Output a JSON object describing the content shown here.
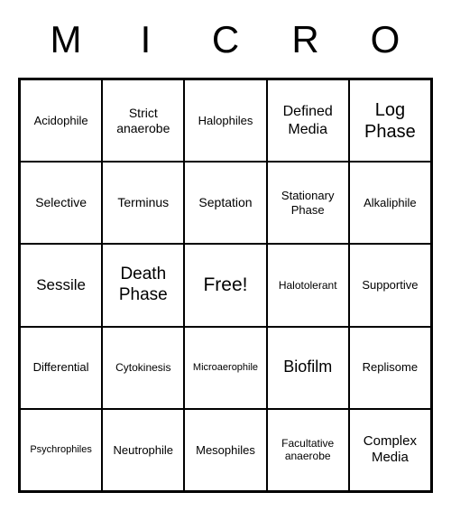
{
  "type": "bingo-card",
  "header": {
    "letters": [
      "M",
      "I",
      "C",
      "R",
      "O"
    ]
  },
  "grid": {
    "cols": 5,
    "rows": 5,
    "cells": [
      {
        "text": "Acidophile",
        "fontSize": 13
      },
      {
        "text": "Strict anaerobe",
        "fontSize": 14
      },
      {
        "text": "Halophiles",
        "fontSize": 13
      },
      {
        "text": "Defined Media",
        "fontSize": 16
      },
      {
        "text": "Log Phase",
        "fontSize": 20
      },
      {
        "text": "Selective",
        "fontSize": 14
      },
      {
        "text": "Terminus",
        "fontSize": 14
      },
      {
        "text": "Septation",
        "fontSize": 14
      },
      {
        "text": "Stationary Phase",
        "fontSize": 13
      },
      {
        "text": "Alkaliphile",
        "fontSize": 13
      },
      {
        "text": "Sessile",
        "fontSize": 17
      },
      {
        "text": "Death Phase",
        "fontSize": 19
      },
      {
        "text": "Free!",
        "fontSize": 21
      },
      {
        "text": "Halotolerant",
        "fontSize": 12
      },
      {
        "text": "Supportive",
        "fontSize": 13
      },
      {
        "text": "Differential",
        "fontSize": 13
      },
      {
        "text": "Cytokinesis",
        "fontSize": 12
      },
      {
        "text": "Microaerophile",
        "fontSize": 11
      },
      {
        "text": "Biofilm",
        "fontSize": 18
      },
      {
        "text": "Replisome",
        "fontSize": 13
      },
      {
        "text": "Psychrophiles",
        "fontSize": 11
      },
      {
        "text": "Neutrophile",
        "fontSize": 13
      },
      {
        "text": "Mesophiles",
        "fontSize": 13
      },
      {
        "text": "Facultative anaerobe",
        "fontSize": 12
      },
      {
        "text": "Complex Media",
        "fontSize": 15
      }
    ]
  },
  "colors": {
    "background": "#ffffff",
    "border": "#000000",
    "text": "#000000"
  }
}
